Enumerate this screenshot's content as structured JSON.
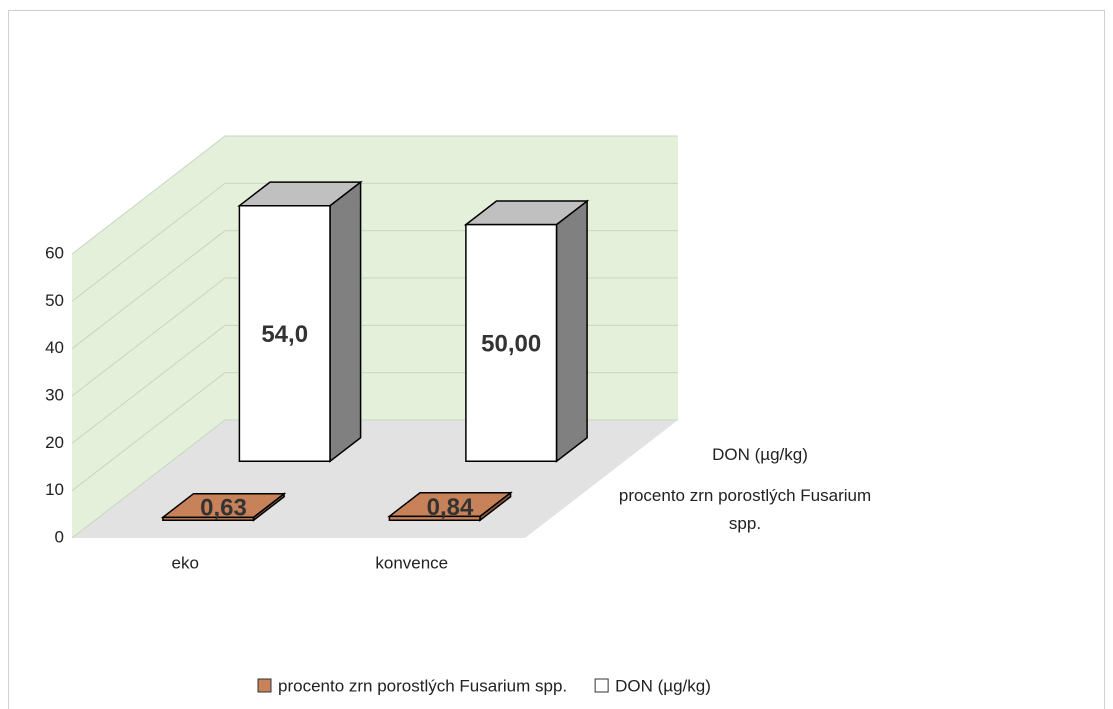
{
  "chart_data": {
    "type": "bar3d",
    "categories": [
      "eko",
      "konvence"
    ],
    "series": [
      {
        "name": "procento zrn porostlých Fusarium spp.",
        "color": "#c8825a",
        "values": [
          0.63,
          0.84
        ],
        "value_labels": [
          "0,63",
          "0,84"
        ]
      },
      {
        "name": "DON (µg/kg)",
        "color": "#ffffff",
        "values": [
          54,
          50
        ],
        "value_labels": [
          "54,0",
          "50,00"
        ]
      }
    ],
    "ylim": [
      0,
      60
    ],
    "yticks": [
      0,
      10,
      20,
      30,
      40,
      50,
      60
    ],
    "grid": true,
    "legend": "bottom"
  }
}
